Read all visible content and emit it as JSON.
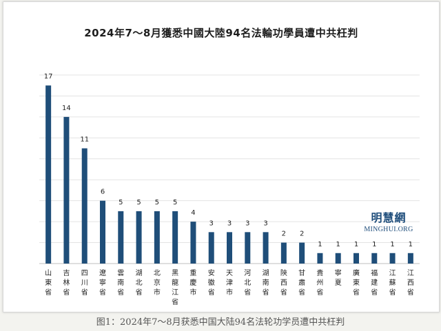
{
  "figure": {
    "caption": "图1：2024年7～8月获悉中国大陆94名法轮功学员遭中共枉判"
  },
  "logo": {
    "chinese": "明慧網",
    "english": "MINGHUI.ORG"
  },
  "colors": {
    "bar": "#1f4e79",
    "grid": "#e3e3e3",
    "axis": "#bfbfbf"
  },
  "chart_data": {
    "type": "bar",
    "title": "2024年7～8月獲悉中國大陸94名法輪功學員遭中共枉判",
    "categories": [
      "山東省",
      "吉林省",
      "四川省",
      "遼寧省",
      "雲南省",
      "湖北省",
      "北京市",
      "黑龍江省",
      "重慶市",
      "安徽省",
      "天津市",
      "河北省",
      "湖南省",
      "陝西省",
      "甘肅省",
      "貴州省",
      "寧夏",
      "廣東省",
      "福建省",
      "江蘇省",
      "江西省"
    ],
    "values": [
      17,
      14,
      11,
      6,
      5,
      5,
      5,
      5,
      4,
      3,
      3,
      3,
      3,
      2,
      2,
      1,
      1,
      1,
      1,
      1,
      1
    ],
    "ylim": [
      0,
      18
    ],
    "grid": true,
    "legend": "none"
  }
}
